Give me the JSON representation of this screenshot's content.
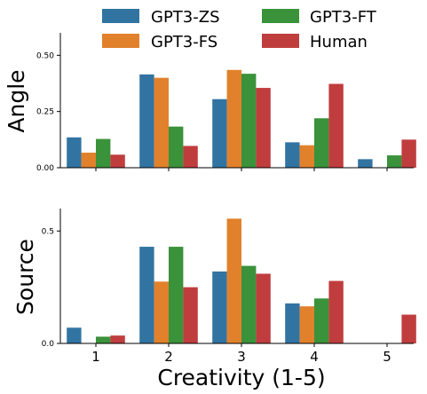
{
  "legend": {
    "items": [
      {
        "label": "GPT3-ZS",
        "color": "#3274a1"
      },
      {
        "label": "GPT3-FT",
        "color": "#3a923a"
      },
      {
        "label": "GPT3-FS",
        "color": "#e1812c"
      },
      {
        "label": "Human",
        "color": "#c03d3e"
      }
    ]
  },
  "chart_data": [
    {
      "type": "bar",
      "categories": [
        "1",
        "2",
        "3",
        "4",
        "5"
      ],
      "series": [
        {
          "name": "GPT3-ZS",
          "color": "#3274a1",
          "values": [
            0.135,
            0.415,
            0.305,
            0.113,
            0.038
          ]
        },
        {
          "name": "GPT3-FS",
          "color": "#e1812c",
          "values": [
            0.067,
            0.4,
            0.435,
            0.1,
            0.0
          ]
        },
        {
          "name": "GPT3-FT",
          "color": "#3a923a",
          "values": [
            0.128,
            0.183,
            0.418,
            0.22,
            0.055
          ]
        },
        {
          "name": "Human",
          "color": "#c03d3e",
          "values": [
            0.058,
            0.097,
            0.355,
            0.373,
            0.125
          ]
        }
      ],
      "ylabel": "Angle",
      "ylim": [
        0,
        0.6
      ],
      "yticks": [
        0.0,
        0.25,
        0.5
      ],
      "ytick_labels": [
        "0.00",
        "0.25",
        "0.50"
      ]
    },
    {
      "type": "bar",
      "categories": [
        "1",
        "2",
        "3",
        "4",
        "5"
      ],
      "series": [
        {
          "name": "GPT3-ZS",
          "color": "#3274a1",
          "values": [
            0.07,
            0.43,
            0.32,
            0.178,
            0.0
          ]
        },
        {
          "name": "GPT3-FS",
          "color": "#e1812c",
          "values": [
            0.0,
            0.275,
            0.555,
            0.165,
            0.0
          ]
        },
        {
          "name": "GPT3-FT",
          "color": "#3a923a",
          "values": [
            0.03,
            0.43,
            0.345,
            0.2,
            0.0
          ]
        },
        {
          "name": "Human",
          "color": "#c03d3e",
          "values": [
            0.035,
            0.25,
            0.31,
            0.278,
            0.128
          ]
        }
      ],
      "ylabel": "Source",
      "xlabel": "Creativity (1-5)",
      "ylim": [
        0,
        0.6
      ],
      "yticks": [
        0.0,
        0.5
      ],
      "ytick_labels": [
        "0.0",
        "0.5"
      ]
    }
  ]
}
